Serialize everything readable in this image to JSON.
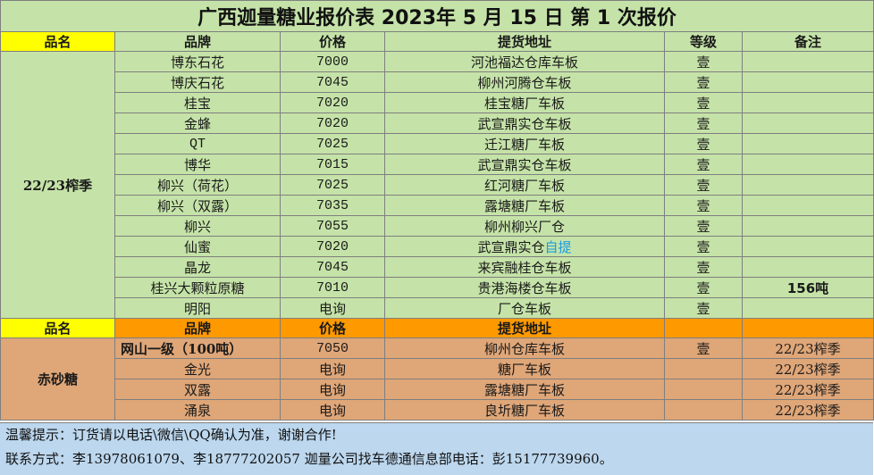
{
  "title": "广西迦量糖业报价表 2023年 5 月 15 日 第 1 次报价",
  "header": [
    "品名",
    "品牌",
    "价格",
    "提货地址",
    "等级",
    "备注"
  ],
  "section1": {
    "category": "22/23榨季",
    "rows": [
      {
        "brand": "博东石花",
        "price": "7000",
        "address": "河池福达仓库车板",
        "grade": "壹",
        "note": ""
      },
      {
        "brand": "博庆石花",
        "price": "7045",
        "address": "柳州河腾仓车板",
        "grade": "壹",
        "note": ""
      },
      {
        "brand": "桂宝",
        "price": "7020",
        "address": "桂宝糖厂车板",
        "grade": "壹",
        "note": ""
      },
      {
        "brand": "金蜂",
        "price": "7020",
        "address": "武宣鼎实仓车板",
        "grade": "壹",
        "note": ""
      },
      {
        "brand": "QT",
        "price": "7025",
        "address": "迁江糖厂车板",
        "grade": "壹",
        "note": ""
      },
      {
        "brand": "博华",
        "price": "7015",
        "address": "武宣鼎实仓车板",
        "grade": "壹",
        "note": ""
      },
      {
        "brand": "柳兴（荷花）",
        "price": "7025",
        "address": "红河糖厂车板",
        "grade": "壹",
        "note": ""
      },
      {
        "brand": "柳兴（双露）",
        "price": "7035",
        "address": "露塘糖厂车板",
        "grade": "壹",
        "note": ""
      },
      {
        "brand": "柳兴",
        "price": "7055",
        "address": "柳州柳兴厂仓",
        "grade": "壹",
        "note": ""
      },
      {
        "brand": "仙蜜",
        "price": "7020",
        "address": "武宣鼎实仓",
        "address_extra": "自提",
        "grade": "壹",
        "note": ""
      },
      {
        "brand": "晶龙",
        "price": "7045",
        "address": "来宾融桂仓车板",
        "grade": "壹",
        "note": ""
      },
      {
        "brand": "桂兴大颗粒原糖",
        "price": "7010",
        "address": "贵港海楼仓车板",
        "grade": "壹",
        "note": "156吨"
      },
      {
        "brand": "明阳",
        "price": "电询",
        "address": "厂仓车板",
        "grade": "壹",
        "note": ""
      }
    ]
  },
  "header2": [
    "品名",
    "品牌",
    "价格",
    "提货地址",
    "",
    ""
  ],
  "section2": {
    "category": "赤砂糖",
    "rows": [
      {
        "brand": "网山一级（100吨）",
        "price": "7050",
        "address": "柳州仓库车板",
        "grade": "壹",
        "note": "22/23榨季"
      },
      {
        "brand": "金光",
        "price": "电询",
        "address": "糖厂车板",
        "grade": "",
        "note": "22/23榨季"
      },
      {
        "brand": "双露",
        "price": "电询",
        "address": "露塘糖厂车板",
        "grade": "",
        "note": "22/23榨季"
      },
      {
        "brand": "涌泉",
        "price": "电询",
        "address": "良圻糖厂车板",
        "grade": "",
        "note": "22/23榨季"
      }
    ]
  },
  "footer": {
    "line1": "温馨提示：订货请以电话\\微信\\QQ确认为准，谢谢合作!",
    "line2": "联系方式：李13978061079、李18777202057    迦量公司找车德通信息部电话：彭15177739960。"
  },
  "colors": {
    "title_bg": "#c5e3a8",
    "header_yellow": "#ffff00",
    "header_orange": "#ff9900",
    "category_green": "#92d050",
    "category_brown": "#c8873b",
    "row_tan": "#dfa678",
    "footer_blue": "#bcd7ee",
    "note_blue": "#1b9be6"
  }
}
